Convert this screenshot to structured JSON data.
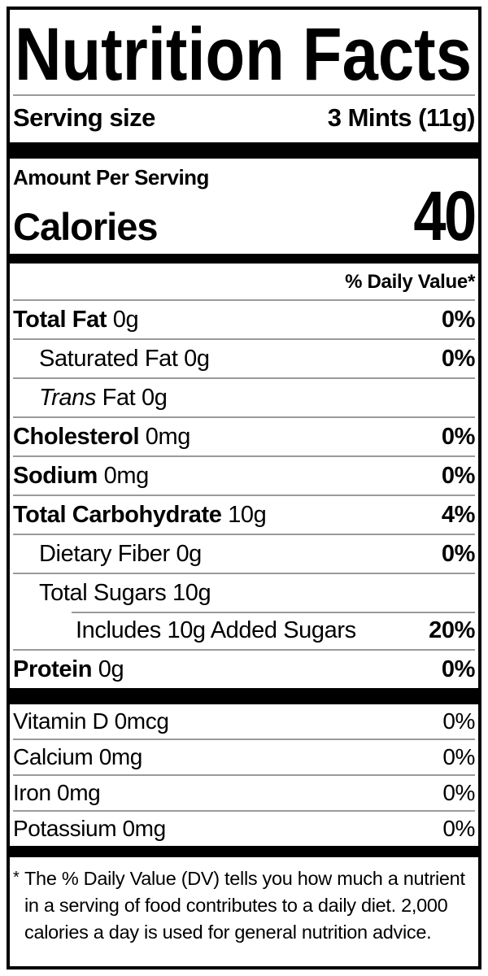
{
  "colors": {
    "text": "#000000",
    "background": "#ffffff",
    "divider": "#9a9a9a",
    "bar": "#000000"
  },
  "label": {
    "title": "Nutrition Facts",
    "serving_size": {
      "label": "Serving size",
      "value": "3 Mints (11g)"
    },
    "amount_per_serving": "Amount Per Serving",
    "calories": {
      "label": "Calories",
      "value": "40"
    },
    "daily_value_header": "% Daily Value*",
    "nutrients": [
      {
        "bold": "Total Fat",
        "text": " 0g",
        "pct": "0%"
      },
      {
        "text": "Saturated Fat 0g",
        "pct": "0%"
      },
      {
        "italic": "Trans",
        "text": " Fat 0g",
        "pct": ""
      },
      {
        "bold": "Cholesterol",
        "text": " 0mg",
        "pct": "0%"
      },
      {
        "bold": "Sodium",
        "text": " 0mg",
        "pct": "0%"
      },
      {
        "bold": "Total Carbohydrate",
        "text": " 10g",
        "pct": "4%"
      },
      {
        "text": "Dietary Fiber 0g",
        "pct": "0%"
      },
      {
        "text": "Total Sugars 10g",
        "pct": ""
      },
      {
        "text": "Includes 10g Added Sugars",
        "pct": "20%"
      },
      {
        "bold": "Protein",
        "text": " 0g",
        "pct": "0%"
      }
    ],
    "vitamins": [
      {
        "text": "Vitamin D 0mcg",
        "pct": "0%"
      },
      {
        "text": "Calcium 0mg",
        "pct": "0%"
      },
      {
        "text": "Iron 0mg",
        "pct": "0%"
      },
      {
        "text": "Potassium 0mg",
        "pct": "0%"
      }
    ],
    "footnote": {
      "marker": "*",
      "text": "The % Daily Value (DV) tells you how much a nutrient in a serving of food contributes to a daily diet. 2,000 calories a day is used for general nutrition advice."
    }
  }
}
